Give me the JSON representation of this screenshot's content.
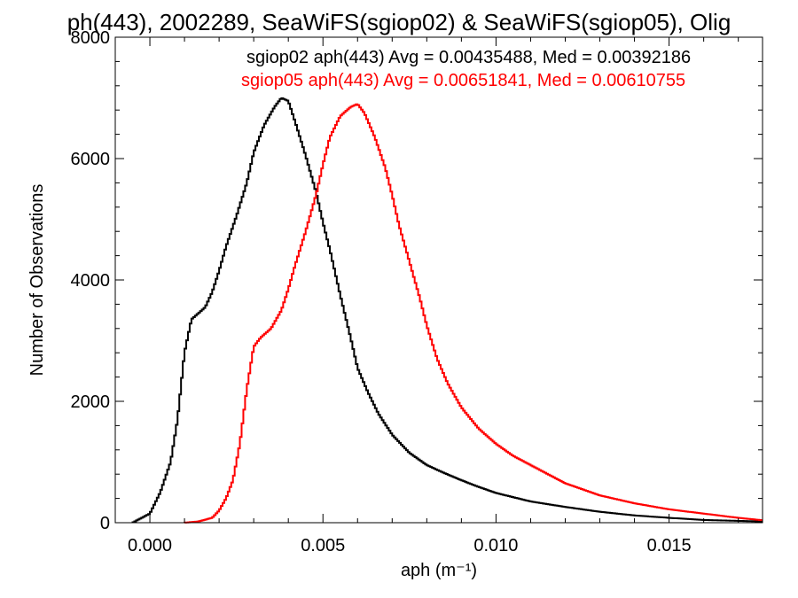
{
  "chart_data": {
    "type": "line",
    "title": "ph(443), 2002289, SeaWiFS(sgiop02) & SeaWiFS(sgiop05), Olig",
    "xlabel": "aph (m⁻¹)",
    "ylabel": "Number of Observations",
    "xlim": [
      -0.001,
      0.0177
    ],
    "ylim": [
      0,
      8000
    ],
    "x_ticks": [
      0.0,
      0.005,
      0.01,
      0.015
    ],
    "x_tick_labels": [
      "0.000",
      "0.005",
      "0.010",
      "0.015"
    ],
    "y_ticks": [
      0,
      2000,
      4000,
      6000,
      8000
    ],
    "y_tick_labels": [
      "0",
      "2000",
      "4000",
      "6000",
      "8000"
    ],
    "grid": false,
    "legend_placement": "top-right",
    "series": [
      {
        "name": "sgiop02",
        "legend_text": "sgiop02 aph(443) Avg = 0.00435488, Med = 0.00392186",
        "color": "#000000",
        "x": [
          -0.0005,
          0.0,
          0.0003,
          0.0006,
          0.0008,
          0.001,
          0.0012,
          0.0014,
          0.0016,
          0.0018,
          0.002,
          0.0022,
          0.0025,
          0.0028,
          0.003,
          0.0033,
          0.0036,
          0.0038,
          0.004,
          0.0042,
          0.0045,
          0.0048,
          0.005,
          0.0052,
          0.0055,
          0.0058,
          0.006,
          0.0063,
          0.0066,
          0.007,
          0.0075,
          0.008,
          0.0085,
          0.009,
          0.0095,
          0.01,
          0.011,
          0.012,
          0.013,
          0.014,
          0.015,
          0.016,
          0.0177
        ],
        "values": [
          0,
          150,
          500,
          1000,
          1700,
          2800,
          3350,
          3450,
          3550,
          3800,
          4150,
          4550,
          5050,
          5600,
          6100,
          6550,
          6850,
          7000,
          6950,
          6600,
          6050,
          5450,
          4950,
          4500,
          3750,
          3050,
          2550,
          2150,
          1800,
          1450,
          1150,
          950,
          820,
          700,
          590,
          490,
          350,
          260,
          180,
          120,
          80,
          45,
          20
        ]
      },
      {
        "name": "sgiop05",
        "legend_text": "sgiop05 aph(443) Avg = 0.00651841, Med = 0.00610755",
        "color": "#ff0000",
        "x": [
          0.001,
          0.0014,
          0.0018,
          0.002,
          0.0022,
          0.0024,
          0.0026,
          0.0028,
          0.003,
          0.0032,
          0.0035,
          0.0038,
          0.004,
          0.0042,
          0.0045,
          0.0048,
          0.005,
          0.0052,
          0.0055,
          0.0058,
          0.006,
          0.0062,
          0.0065,
          0.0068,
          0.007,
          0.0072,
          0.0075,
          0.0078,
          0.008,
          0.0083,
          0.0086,
          0.009,
          0.0095,
          0.01,
          0.0105,
          0.011,
          0.012,
          0.013,
          0.014,
          0.015,
          0.016,
          0.017,
          0.0177
        ],
        "values": [
          0,
          20,
          80,
          200,
          400,
          700,
          1300,
          2200,
          2900,
          3050,
          3200,
          3500,
          3850,
          4250,
          4800,
          5400,
          5900,
          6350,
          6700,
          6850,
          6900,
          6750,
          6350,
          5850,
          5400,
          4900,
          4300,
          3700,
          3250,
          2700,
          2300,
          1900,
          1550,
          1300,
          1100,
          950,
          650,
          450,
          320,
          220,
          150,
          80,
          40
        ]
      }
    ]
  }
}
